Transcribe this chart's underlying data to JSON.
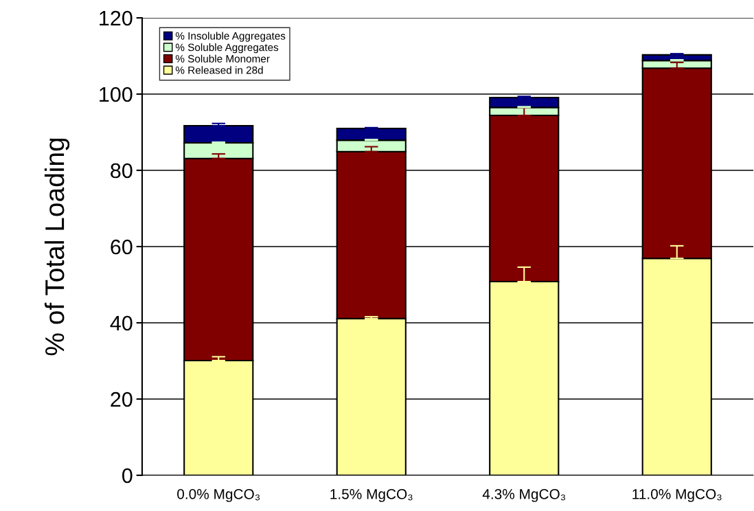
{
  "chart_data": {
    "type": "bar",
    "stacked": true,
    "ylabel": "% of Total Loading",
    "categories": [
      "0.0% MgCO₃",
      "1.5% MgCO₃",
      "4.3% MgCO₃",
      "11.0% MgCO₃"
    ],
    "series": [
      {
        "name": "% Released in 28d",
        "color": "#ffff99",
        "values": [
          30.1,
          41.1,
          50.8,
          56.9
        ],
        "errors": [
          [
            30.1,
            31.1
          ],
          [
            41.1,
            41.6
          ],
          [
            50.8,
            54.6
          ],
          [
            56.9,
            60.2
          ]
        ]
      },
      {
        "name": "% Soluble Monomer",
        "color": "#800000",
        "values": [
          53.0,
          43.8,
          43.6,
          49.9
        ],
        "errors": [
          [
            83.1,
            84.3
          ],
          [
            84.9,
            86.2
          ],
          [
            94.4,
            96.4
          ],
          [
            106.8,
            108.3
          ]
        ]
      },
      {
        "name": "% Soluble Aggregates",
        "color": "#ccffcc",
        "values": [
          4.1,
          3.0,
          2.1,
          2.0
        ],
        "errors": [
          [
            87.2,
            87.4
          ],
          [
            87.9,
            88.1
          ],
          [
            96.5,
            96.7
          ],
          [
            108.8,
            109.0
          ]
        ]
      },
      {
        "name": "% Insoluble Aggregates",
        "color": "#000080",
        "values": [
          4.5,
          3.1,
          2.6,
          1.5
        ],
        "errors": [
          [
            91.7,
            92.3
          ],
          [
            91.0,
            91.2
          ],
          [
            99.1,
            99.4
          ],
          [
            110.3,
            110.6
          ]
        ]
      }
    ],
    "ylim": [
      0,
      120
    ],
    "yticks": [
      0,
      20,
      40,
      60,
      80,
      100,
      120
    ],
    "grid": "y",
    "legend": "top left"
  }
}
